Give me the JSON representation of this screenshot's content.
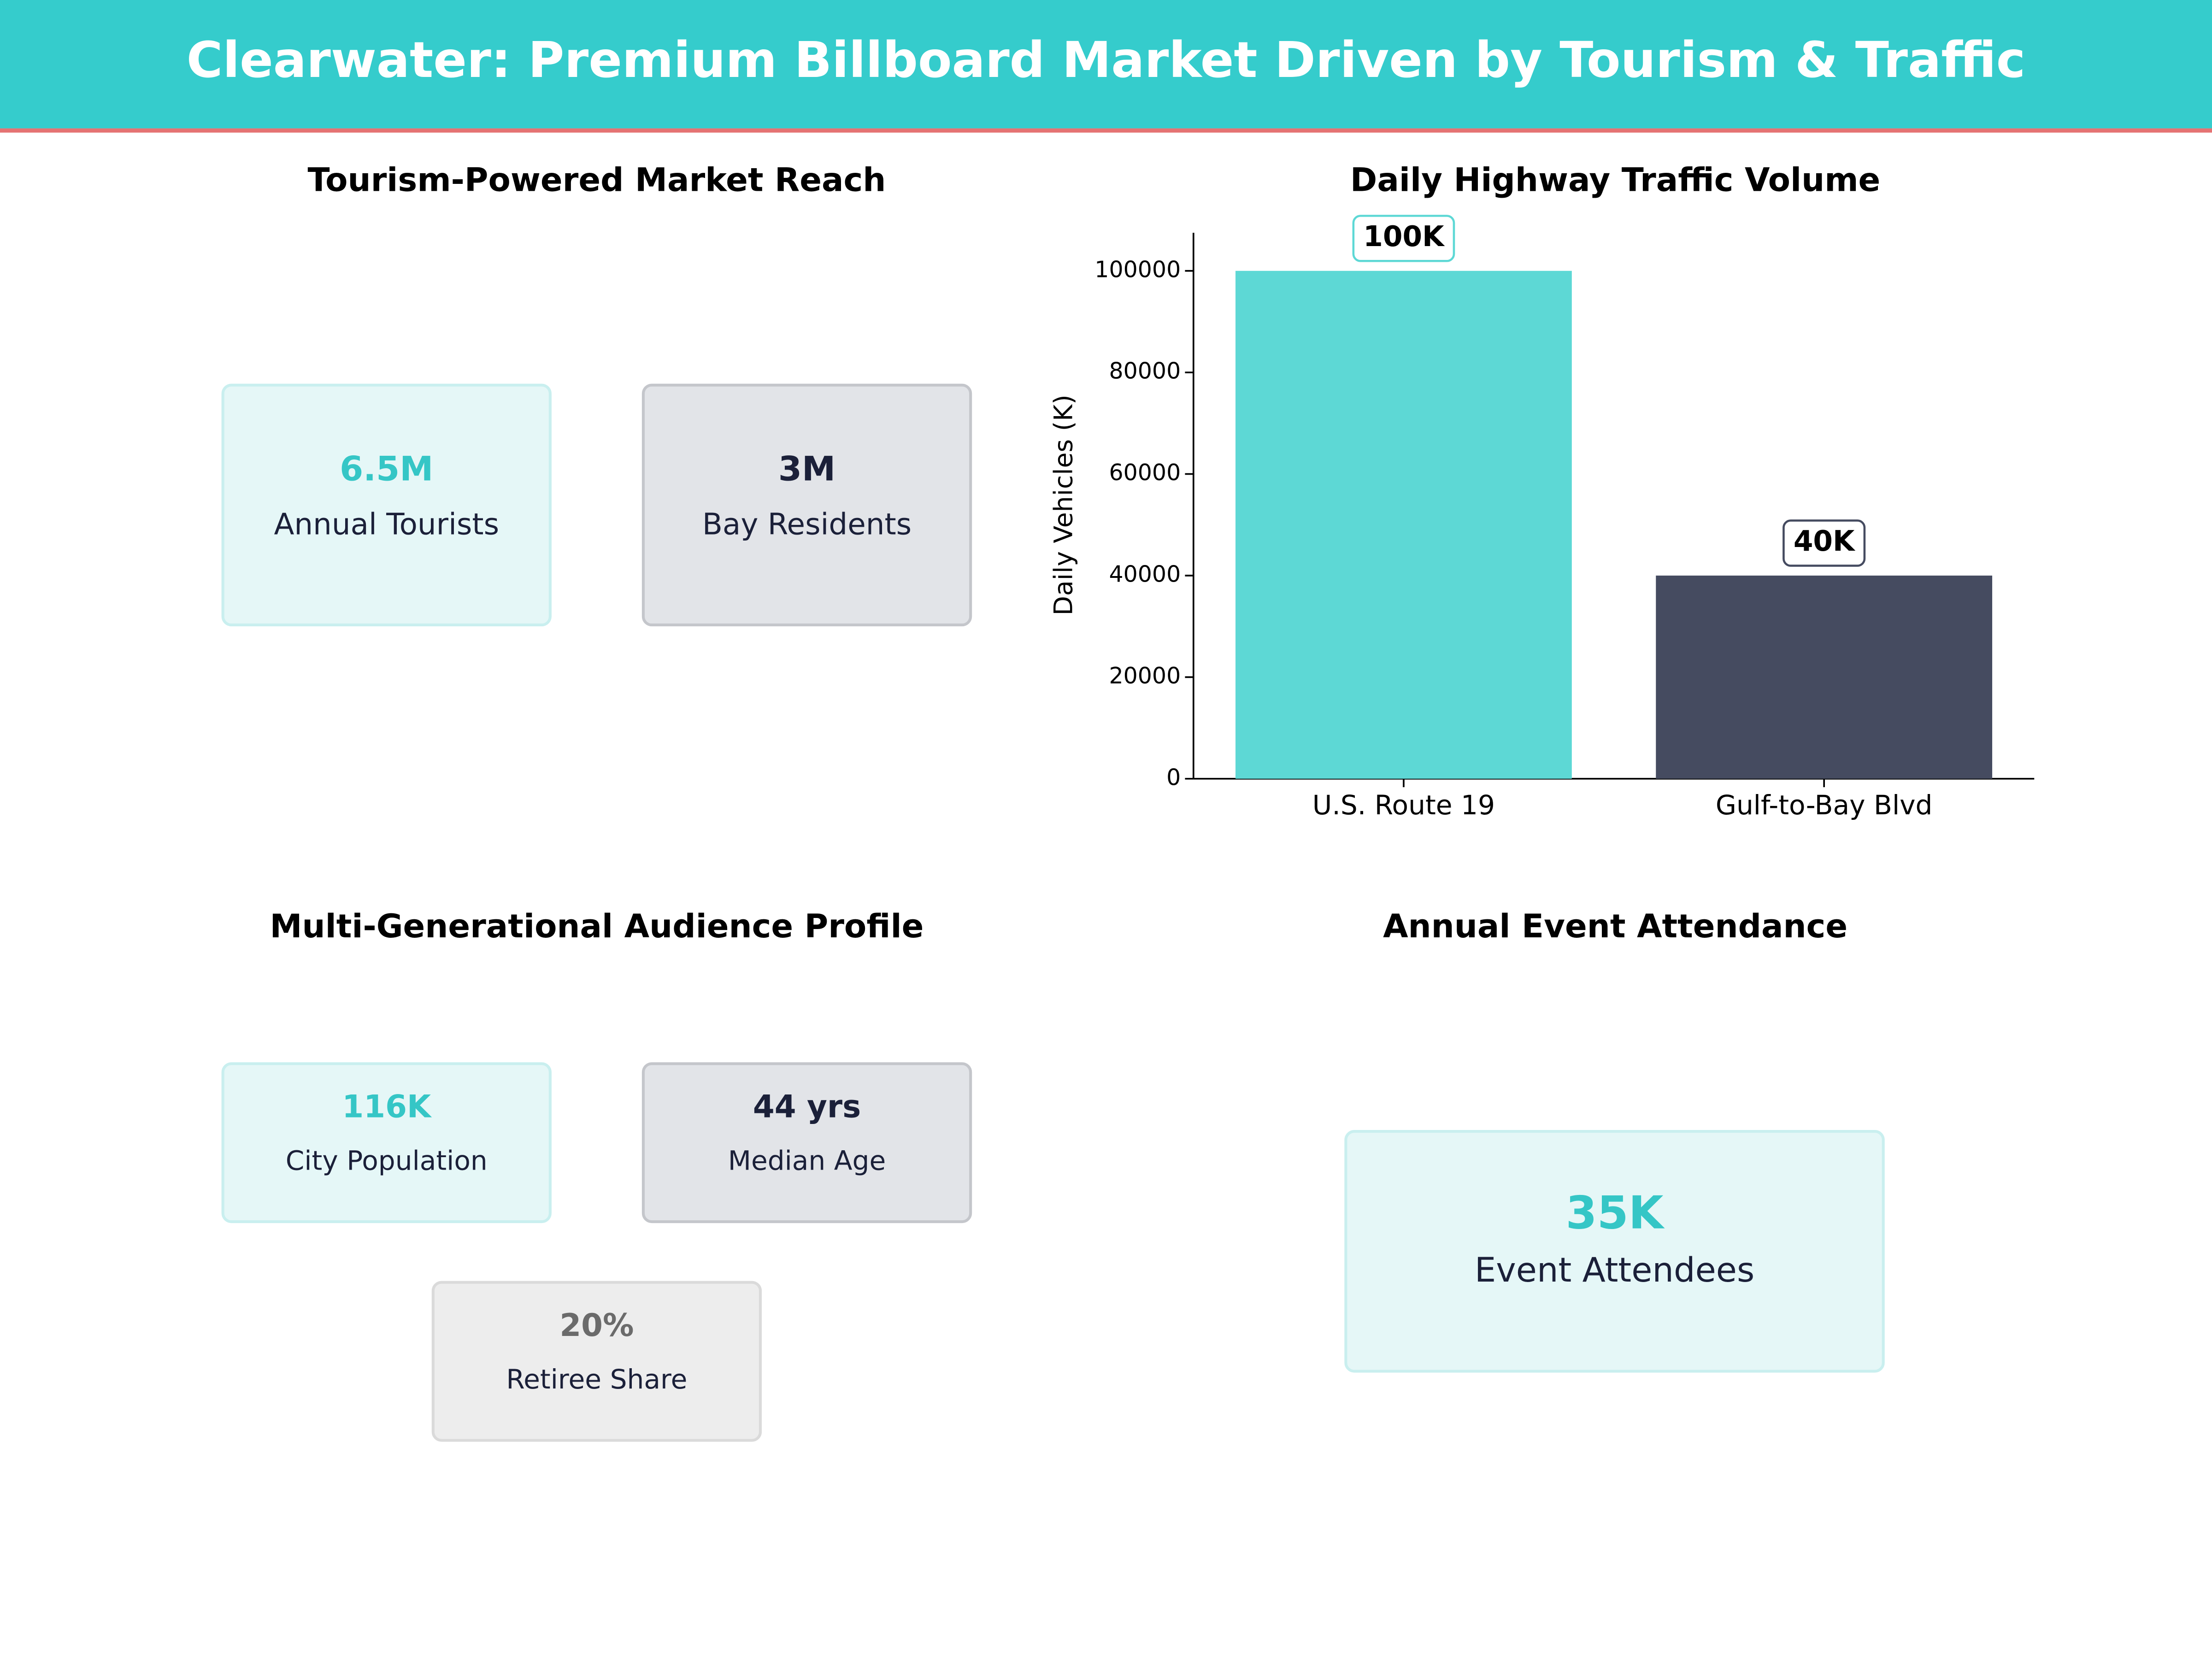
{
  "title": "Clearwater: Premium Billboard Market Driven by Tourism & Traffic",
  "reach": {
    "title": "Tourism-Powered Market Reach",
    "cards": [
      {
        "value": "6.5M",
        "label": "Annual Tourists"
      },
      {
        "value": "3M",
        "label": "Bay Residents"
      }
    ]
  },
  "chart_data": {
    "type": "bar",
    "title": "Daily Highway Traffic Volume",
    "y_label": "Daily Vehicles (K)",
    "categories": [
      "U.S. Route 19",
      "Gulf-to-Bay Blvd"
    ],
    "values": [
      100000,
      40000
    ],
    "value_labels": [
      "100K",
      "40K"
    ],
    "colors": [
      "#5dd8d5",
      "#454b60"
    ],
    "ylim": [
      0,
      107500
    ],
    "yticks": [
      0,
      20000,
      40000,
      60000,
      80000,
      100000
    ]
  },
  "audience": {
    "title": "Multi-Generational Audience Profile",
    "cards": [
      {
        "value": "116K",
        "label": "City Population"
      },
      {
        "value": "44 yrs",
        "label": "Median Age"
      },
      {
        "value": "20%",
        "label": "Retiree Share"
      }
    ]
  },
  "events": {
    "title": "Annual Event Attendance",
    "cards": [
      {
        "value": "35K",
        "label": "Event Attendees"
      }
    ]
  }
}
